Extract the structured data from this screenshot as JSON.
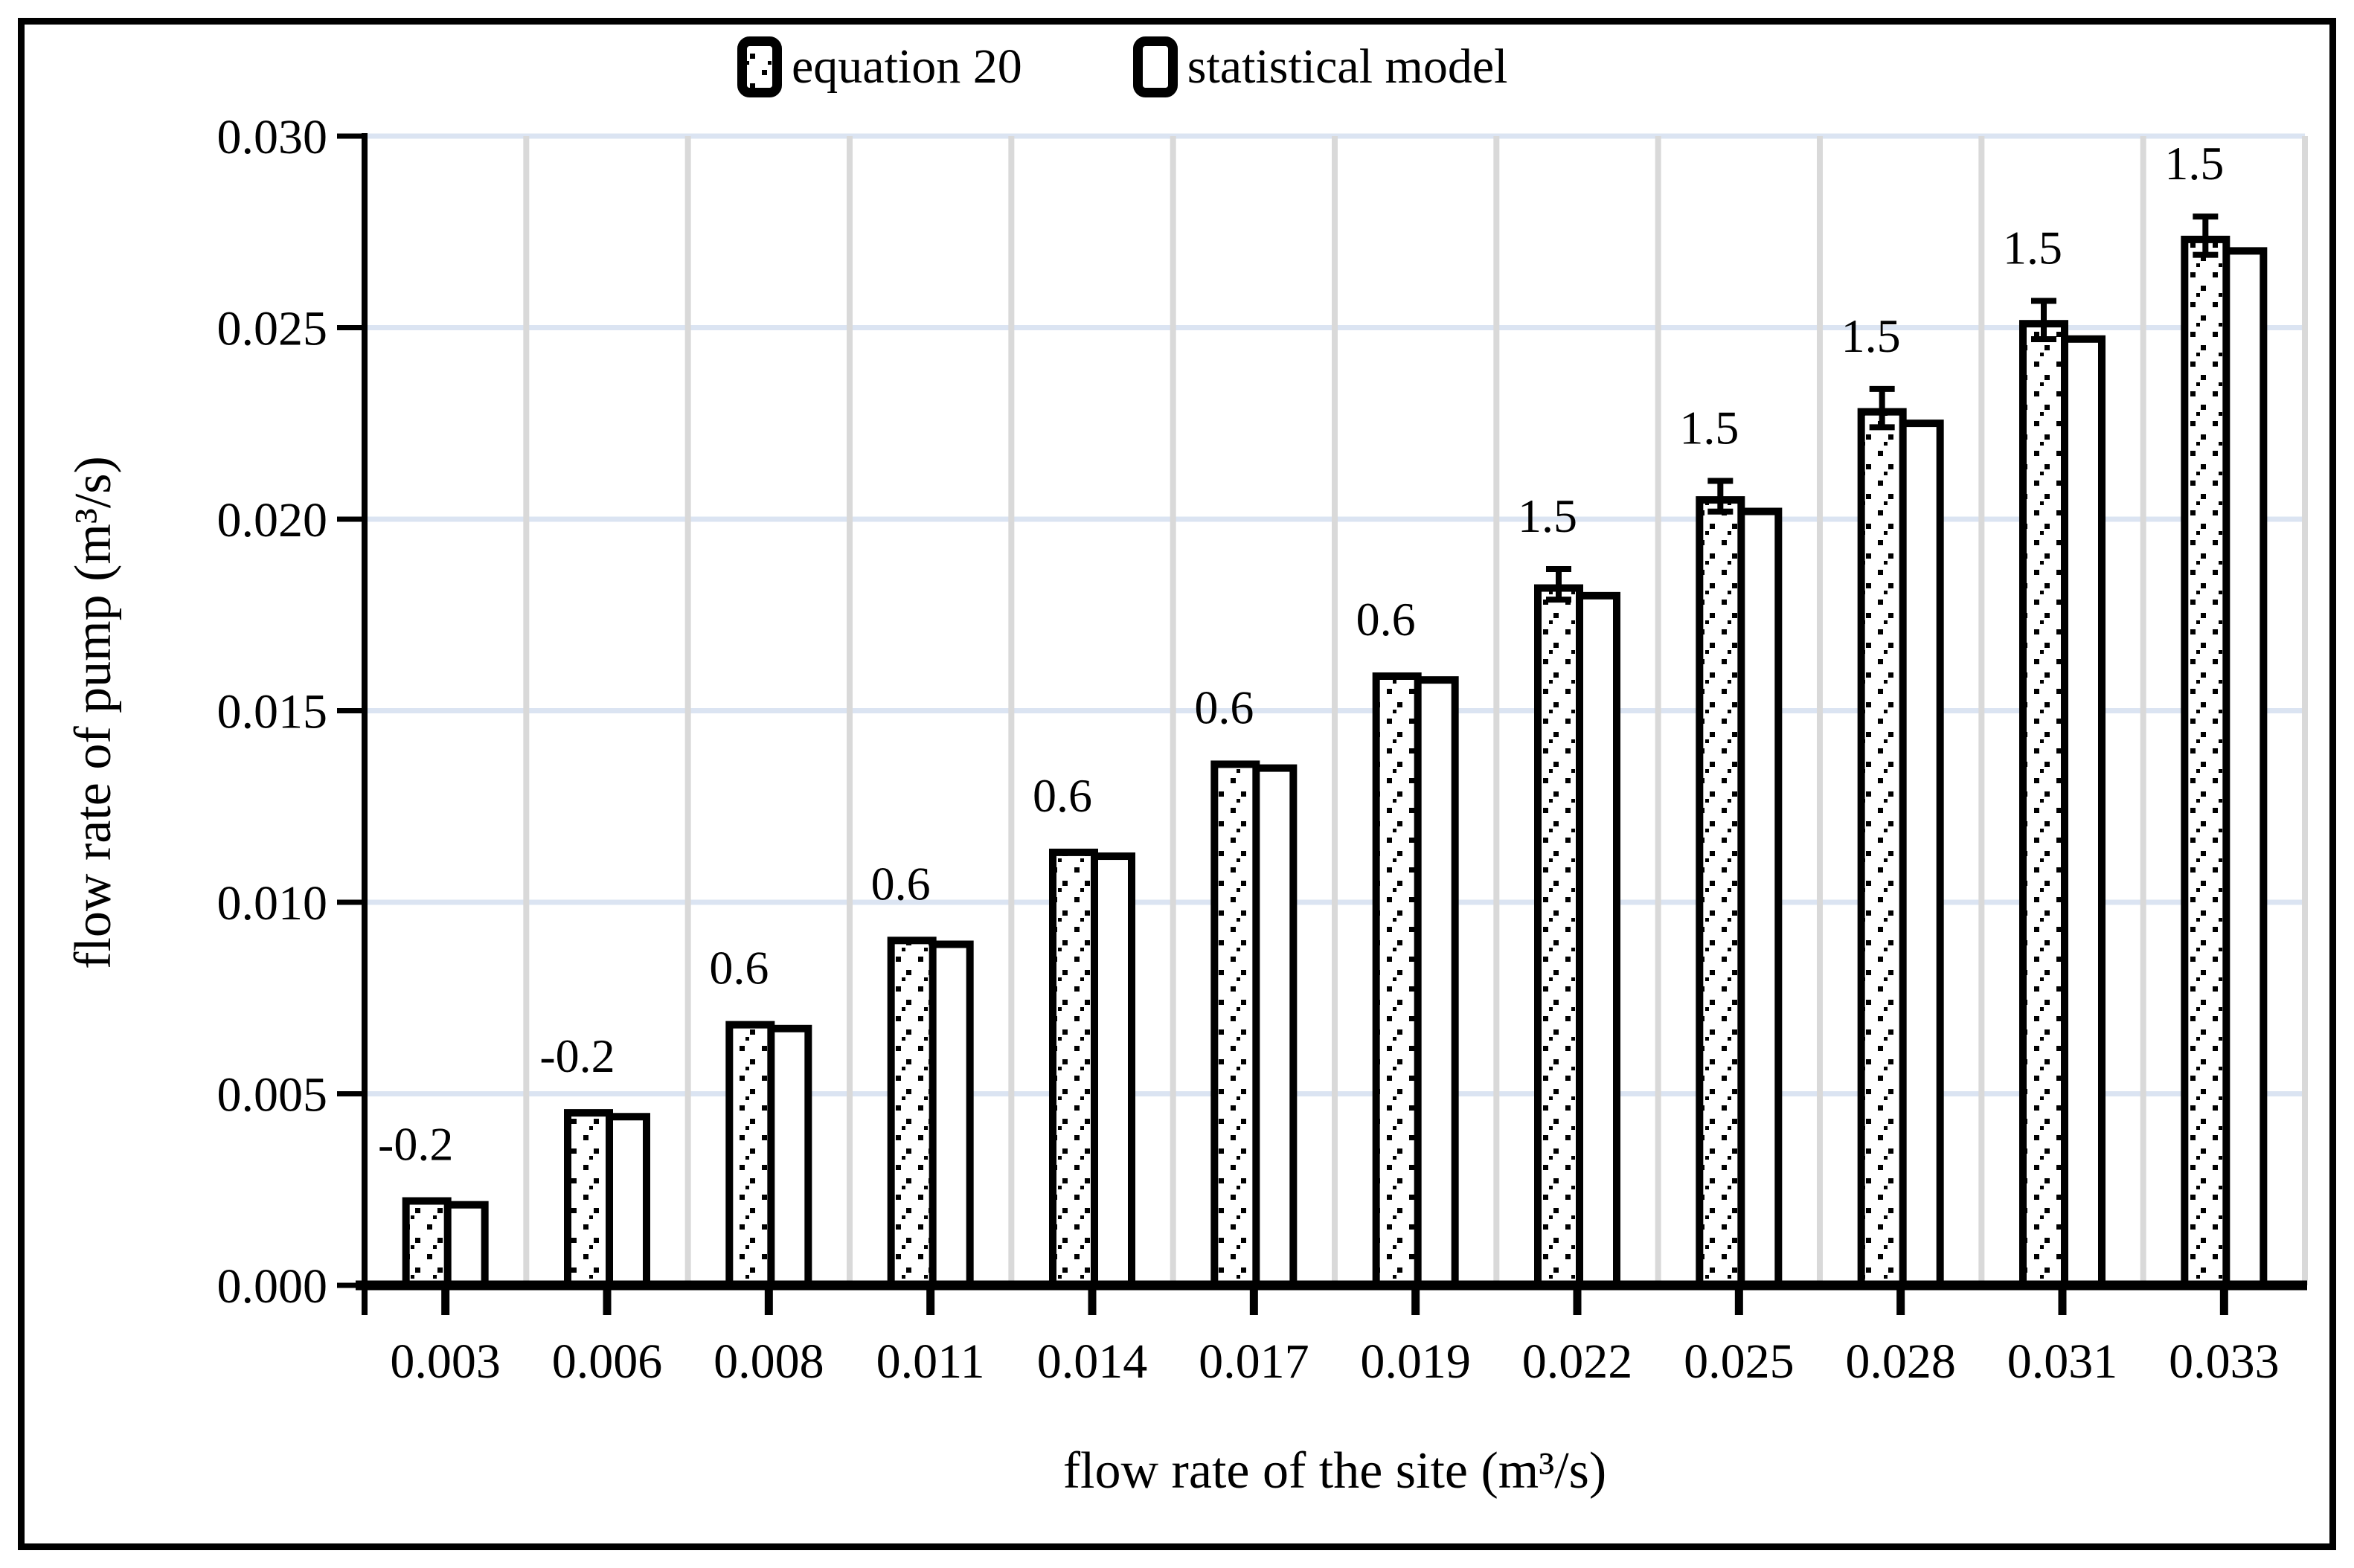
{
  "chart_data": {
    "type": "bar",
    "title": "",
    "xlabel": "flow rate of the site (m³/s)",
    "ylabel": "flow rate of pump  (m³/s)",
    "categories": [
      "0.003",
      "0.006",
      "0.008",
      "0.011",
      "0.014",
      "0.017",
      "0.019",
      "0.022",
      "0.025",
      "0.028",
      "0.031",
      "0.033"
    ],
    "series": [
      {
        "name": "equation 20",
        "fill": "dotted-pattern",
        "values": [
          0.0023,
          0.0046,
          0.0069,
          0.0091,
          0.0114,
          0.0137,
          0.016,
          0.0183,
          0.0206,
          0.0229,
          0.0252,
          0.0274
        ],
        "error_upper": [
          0,
          0,
          0,
          0,
          0,
          0,
          0,
          0.0004,
          0.0004,
          0.0005,
          0.0005,
          0.0005
        ]
      },
      {
        "name": "statistical model",
        "fill": "white",
        "values": [
          0.0022,
          0.0045,
          0.0068,
          0.009,
          0.0113,
          0.0136,
          0.0159,
          0.0181,
          0.0203,
          0.0226,
          0.0248,
          0.0271
        ]
      }
    ],
    "bar_labels": [
      "-0.2",
      "-0.2",
      "0.6",
      "0.6",
      "0.6",
      "0.6",
      "0.6",
      "1.5",
      "1.5",
      "1.5",
      "1.5",
      "1.5"
    ],
    "y_ticks": [
      "0.000",
      "0.005",
      "0.010",
      "0.015",
      "0.020",
      "0.025",
      "0.030"
    ],
    "ylim": [
      0,
      0.03
    ],
    "legend_position": "top",
    "grid": {
      "horizontal_color": "#dbe4f2",
      "vertical_color": "#d9d9d9",
      "horizontal": true,
      "vertical": true
    },
    "colors": {
      "axis": "#000000",
      "bar_border": "#000000",
      "text": "#000000"
    }
  }
}
